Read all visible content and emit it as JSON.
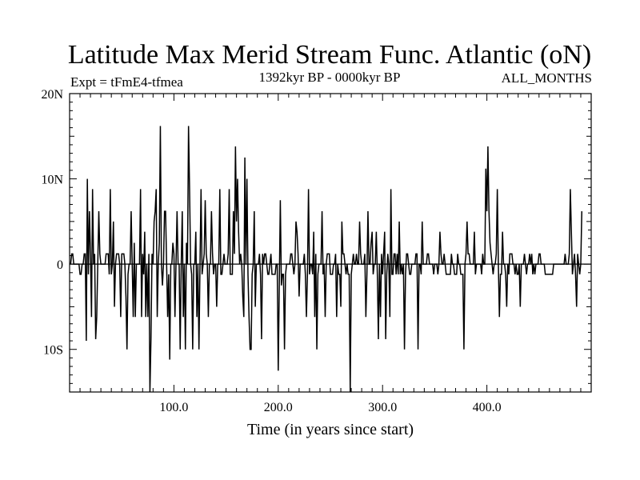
{
  "header": {
    "title": "Latitude Max Merid Stream Func. Atlantic (oN)",
    "experiment": "Expt = tFmE4-tfmea",
    "period": "1392kyr BP - 0000kyr BP",
    "months": "ALL_MONTHS"
  },
  "colors": {
    "line": "#000000",
    "axis": "#000000",
    "background": "#ffffff"
  },
  "chart_data": {
    "type": "line",
    "xlabel": "Time (in years since start)",
    "ylabel": "",
    "xlim": [
      0,
      500
    ],
    "ylim": [
      -15,
      20
    ],
    "x_ticks": [
      {
        "value": 100,
        "label": "100.0"
      },
      {
        "value": 200,
        "label": "200.0"
      },
      {
        "value": 300,
        "label": "300.0"
      },
      {
        "value": 400,
        "label": "400.0"
      }
    ],
    "y_ticks": [
      {
        "value": 20,
        "label": "20N"
      },
      {
        "value": 10,
        "label": "10N"
      },
      {
        "value": 0,
        "label": "0"
      },
      {
        "value": -10,
        "label": "10S"
      }
    ],
    "grid": false,
    "legend": "none",
    "series": [
      {
        "x_start": 1,
        "x_step": 1,
        "values": [
          0,
          1.2,
          1.2,
          0,
          0,
          0,
          0,
          0,
          0,
          -1.2,
          -1.2,
          0,
          0,
          1.2,
          1.2,
          -9,
          10,
          -1.2,
          6.2,
          1.2,
          -6.2,
          8.8,
          0,
          1.2,
          -8.8,
          -6.2,
          0,
          6.2,
          1.2,
          0,
          0,
          0,
          0,
          0,
          1.2,
          1.2,
          1.2,
          -1.2,
          8.8,
          -1.2,
          0,
          5,
          -5,
          0,
          1.2,
          1.2,
          1.2,
          0,
          -6.2,
          1.2,
          1.2,
          1.2,
          0,
          -3.8,
          -10,
          -1.2,
          0,
          0,
          6.2,
          0,
          -6.2,
          2.5,
          -6.2,
          0,
          0,
          0,
          0,
          8.8,
          -6.2,
          1.2,
          -1.2,
          3.8,
          -6.2,
          0,
          -6.2,
          1.2,
          -15,
          -8.8,
          1.2,
          0,
          5,
          6.2,
          8.8,
          -6.2,
          0,
          2.5,
          16.2,
          0,
          -2.5,
          0,
          6.2,
          6.2,
          0,
          -6.2,
          -1.2,
          -11.2,
          0,
          0,
          2.5,
          1.2,
          -6.2,
          0,
          6.2,
          0,
          0,
          -10,
          0,
          6.2,
          -6.2,
          0,
          -10,
          2.5,
          0,
          16.2,
          8.8,
          0,
          -1.2,
          -10,
          0,
          0,
          3.8,
          -6.2,
          0,
          -10,
          0,
          8.8,
          -1.2,
          0,
          1.2,
          7.5,
          1.2,
          0,
          -6.2,
          0,
          0,
          6.2,
          1.2,
          -1.2,
          0,
          0,
          -5,
          0,
          0,
          8.8,
          -1.2,
          -1.2,
          0,
          1.2,
          0,
          0,
          0,
          1.2,
          8.8,
          -1.2,
          -1.2,
          -1.2,
          6.2,
          1.2,
          13.8,
          5,
          10,
          3.8,
          0,
          1.2,
          0,
          -3.8,
          -6.2,
          12.5,
          0,
          10,
          -1.2,
          -6.2,
          -10,
          -10,
          -1.2,
          0,
          6.2,
          -5,
          0,
          0,
          0,
          1.2,
          -1.2,
          -8.8,
          1.2,
          0,
          1.2,
          1.2,
          0,
          -1.2,
          -1.2,
          0,
          1.2,
          -1.2,
          -1.2,
          -1.2,
          -1.2,
          0,
          0,
          -12.5,
          -2.5,
          7.5,
          -2.5,
          -1.2,
          -1.2,
          -10,
          -1.2,
          0,
          0,
          0,
          0,
          1.2,
          1.2,
          0,
          -1.2,
          0,
          5,
          3.8,
          1.2,
          -3.8,
          0,
          0,
          0,
          0,
          1.2,
          -1.2,
          -6.2,
          -1.2,
          8.8,
          -1.2,
          0,
          0,
          -1.2,
          3.8,
          -6.2,
          1.2,
          -10,
          -1.2,
          0,
          0,
          0,
          6.2,
          -1.2,
          0,
          -6.2,
          0,
          1.2,
          1.2,
          1.2,
          -1.2,
          -1.2,
          -1.2,
          0,
          0,
          1.2,
          -6.2,
          0,
          -1.2,
          -1.2,
          -5,
          5,
          1.2,
          1.2,
          0,
          -1.2,
          0,
          -1.2,
          -1.2,
          -15,
          -1.2,
          0,
          1.2,
          0,
          0,
          1.2,
          0,
          0,
          5,
          1.2,
          0,
          0,
          0,
          1.2,
          -6.2,
          -1.2,
          6.2,
          0,
          0,
          2.5,
          3.8,
          -1.2,
          0,
          0,
          3.8,
          -1.2,
          -8.8,
          0,
          -6.2,
          1.2,
          -1.2,
          1.2,
          3.8,
          -8.8,
          -1.2,
          1.2,
          0,
          -6.2,
          8.8,
          -1.2,
          -1.2,
          1.2,
          1.2,
          -1.2,
          1.2,
          -1.2,
          5,
          -1.2,
          0,
          -1.2,
          0,
          -10,
          -1.2,
          1.2,
          1.2,
          0,
          -1.2,
          -1.2,
          0,
          0,
          0,
          0,
          1.2,
          1.2,
          -10,
          0,
          0,
          -1.2,
          5,
          0,
          0,
          0,
          0,
          1.2,
          1.2,
          0,
          0,
          0,
          0,
          -1.2,
          0,
          0,
          0,
          -1.2,
          0,
          3.8,
          1.2,
          0,
          0,
          1.2,
          0,
          -1.2,
          -1.2,
          -1.2,
          -1.2,
          -1.2,
          1.2,
          0,
          0,
          -1.2,
          -1.2,
          -1.2,
          1.2,
          0,
          0,
          -1.2,
          -1.2,
          -1.2,
          -10,
          0,
          1.2,
          5,
          1.2,
          1.2,
          0,
          0,
          0,
          0,
          3.8,
          -1.2,
          0,
          0,
          0,
          0,
          0,
          -1.2,
          1.2,
          0,
          0,
          11.2,
          6.2,
          13.8,
          6.2,
          2.5,
          1.2,
          0,
          -1.2,
          0,
          0,
          1.2,
          8.8,
          0,
          -6.2,
          -1.2,
          -1.2,
          3.8,
          0,
          0,
          -1.2,
          -5,
          0,
          -1.2,
          1.2,
          1.2,
          1.2,
          0,
          0,
          -1.2,
          0,
          -1.2,
          -1.2,
          0,
          -5,
          0,
          0,
          0,
          1.2,
          0,
          -1.2,
          0,
          0,
          1.2,
          0,
          1.2,
          -1.2,
          0,
          -1.2,
          0,
          0,
          0,
          1.2,
          1.2,
          0,
          0,
          0,
          0,
          -1.2,
          -1.2,
          -1.2,
          -1.2,
          -1.2,
          -1.2,
          -1.2,
          -1.2,
          0,
          0,
          0,
          0,
          0,
          0,
          0,
          0,
          0,
          0,
          0,
          1.2,
          0,
          0,
          0,
          1.2,
          8.8,
          3.8,
          -1.2,
          0,
          1.2,
          -1.2,
          -5,
          1.2,
          0,
          -1.2,
          0,
          6.2
        ]
      }
    ]
  }
}
